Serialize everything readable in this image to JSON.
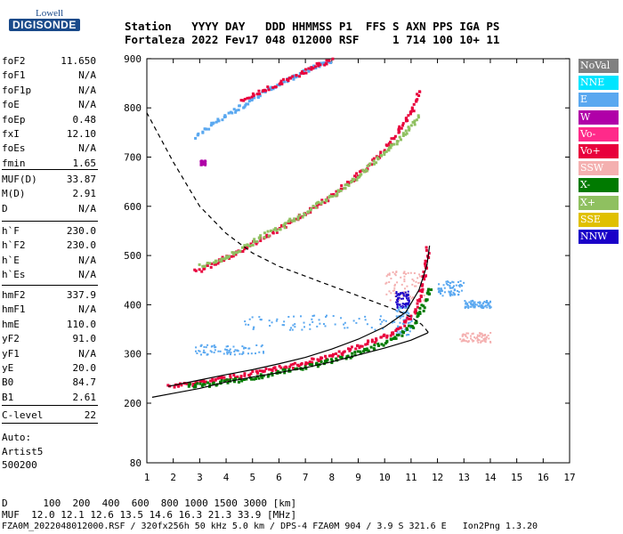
{
  "logo": {
    "line1": "Lowell",
    "line2": "DIGISONDE"
  },
  "header": {
    "row1": "Station   YYYY DAY   DDD HHMMSS P1  FFS S AXN PPS IGA PS",
    "row2": "Fortaleza 2022 Fev17 048 012000 RSF     1 714 100 10+ 11"
  },
  "params_group1": [
    {
      "name": "foF2",
      "value": "11.650"
    },
    {
      "name": "foF1",
      "value": "N/A"
    },
    {
      "name": "foF1p",
      "value": "N/A"
    },
    {
      "name": "foE",
      "value": "N/A"
    },
    {
      "name": "foEp",
      "value": "0.48"
    },
    {
      "name": "fxI",
      "value": "12.10"
    },
    {
      "name": "foEs",
      "value": "N/A"
    },
    {
      "name": "fmin",
      "value": "1.65"
    }
  ],
  "params_group2": [
    {
      "name": "MUF(D)",
      "value": "33.87"
    },
    {
      "name": "M(D)",
      "value": "2.91"
    },
    {
      "name": "D",
      "value": "N/A"
    }
  ],
  "params_group3": [
    {
      "name": "h`F",
      "value": "230.0"
    },
    {
      "name": "h`F2",
      "value": "230.0"
    },
    {
      "name": "h`E",
      "value": "N/A"
    },
    {
      "name": "h`Es",
      "value": "N/A"
    }
  ],
  "params_group4": [
    {
      "name": "hmF2",
      "value": "337.9"
    },
    {
      "name": "hmF1",
      "value": "N/A"
    },
    {
      "name": "hmE",
      "value": "110.0"
    },
    {
      "name": "yF2",
      "value": "91.0"
    },
    {
      "name": "yF1",
      "value": "N/A"
    },
    {
      "name": "yE",
      "value": "20.0"
    },
    {
      "name": "B0",
      "value": "84.7"
    },
    {
      "name": "B1",
      "value": "2.61"
    }
  ],
  "params_group5": [
    {
      "name": "C-level",
      "value": "22"
    }
  ],
  "autoscale": {
    "line1": "Auto:",
    "line2": "Artist5",
    "line3": "500200"
  },
  "bottom": {
    "d_row": "D      100  200  400  600  800 1000 1500 3000 [km]",
    "muf_row": "MUF  12.0 12.1 12.6 13.5 14.6 16.3 21.3 33.9 [MHz]",
    "footer": "FZA0M_2022048012000.RSF / 320fx256h 50 kHz 5.0 km / DPS-4 FZA0M 904 / 3.9 S 321.6 E   Ion2Png 1.3.20"
  },
  "legend": [
    {
      "label": "NoVal",
      "color": "#808080"
    },
    {
      "label": "NNE",
      "color": "#00e5ff"
    },
    {
      "label": "E",
      "color": "#5aa8f0"
    },
    {
      "label": "W",
      "color": "#b000a8"
    },
    {
      "label": "Vo-",
      "color": "#ff2a8a"
    },
    {
      "label": "Vo+",
      "color": "#e8003c"
    },
    {
      "label": "SSW",
      "color": "#f4b0b0"
    },
    {
      "label": "X-",
      "color": "#007a00"
    },
    {
      "label": "X+",
      "color": "#8fc060"
    },
    {
      "label": "SSE",
      "color": "#e0c000"
    },
    {
      "label": "NNW",
      "color": "#1a00c8"
    }
  ],
  "chart_data": {
    "type": "scatter",
    "xlim": [
      1,
      17
    ],
    "ylim": [
      80,
      900
    ],
    "xticks": [
      1,
      2,
      3,
      4,
      5,
      6,
      7,
      8,
      9,
      10,
      11,
      12,
      13,
      14,
      15,
      16,
      17
    ],
    "yticks": [
      80,
      200,
      300,
      400,
      500,
      600,
      700,
      800,
      900
    ],
    "series": [
      {
        "name": "Vo+",
        "color": "#e8003c",
        "type": "trace",
        "x": [
          1.8,
          2.5,
          3.5,
          4.5,
          5.5,
          6.5,
          7.5,
          8.5,
          9.5,
          10.2,
          10.6,
          11.0,
          11.2,
          11.4,
          11.6
        ],
        "y": [
          236,
          241,
          249,
          258,
          268,
          279,
          292,
          308,
          328,
          345,
          360,
          380,
          400,
          440,
          520
        ]
      },
      {
        "name": "X-",
        "color": "#007a00",
        "type": "trace",
        "x": [
          2.5,
          3.5,
          4.5,
          5.5,
          6.5,
          7.5,
          8.5,
          9.5,
          10.5,
          11.0,
          11.3,
          11.5,
          11.7
        ],
        "y": [
          236,
          242,
          250,
          259,
          270,
          282,
          296,
          315,
          340,
          360,
          385,
          410,
          440
        ]
      },
      {
        "name": "Vo+",
        "color": "#e8003c",
        "type": "trace",
        "x": [
          2.8,
          3.8,
          4.8,
          5.8,
          6.8,
          7.8,
          8.8,
          9.8,
          10.5,
          11.0,
          11.3
        ],
        "y": [
          470,
          493,
          522,
          552,
          583,
          618,
          658,
          708,
          755,
          800,
          840
        ]
      },
      {
        "name": "X+",
        "color": "#8fc060",
        "type": "trace",
        "x": [
          3.0,
          4.0,
          5.0,
          6.0,
          7.0,
          8.0,
          9.0,
          10.0,
          10.8,
          11.3
        ],
        "y": [
          480,
          500,
          530,
          560,
          590,
          625,
          665,
          712,
          755,
          790
        ]
      },
      {
        "name": "E",
        "color": "#5aa8f0",
        "type": "trace",
        "x": [
          2.8,
          3.5,
          4.2,
          5.0,
          5.8,
          6.5,
          7.2,
          7.7,
          8.0
        ],
        "y": [
          745,
          772,
          796,
          822,
          846,
          866,
          882,
          894,
          900
        ]
      },
      {
        "name": "Vo+",
        "color": "#e8003c",
        "type": "trace",
        "x": [
          4.5,
          5.5,
          6.5,
          7.5,
          8.0
        ],
        "y": [
          815,
          840,
          865,
          890,
          900
        ]
      },
      {
        "name": "profile",
        "color": "#000000",
        "type": "line",
        "x": [
          1.2,
          2,
          3,
          4,
          5,
          6,
          7,
          8,
          9,
          10,
          10.5,
          11,
          11.3,
          11.6,
          11.65
        ],
        "y": [
          212,
          220,
          230,
          243,
          253,
          262,
          272,
          284,
          298,
          312,
          320,
          328,
          335,
          342,
          344
        ]
      },
      {
        "name": "fit",
        "color": "#000000",
        "type": "line",
        "x": [
          1.8,
          3,
          4,
          5,
          6,
          7,
          8,
          9,
          10,
          10.8,
          11.3,
          11.6,
          11.7
        ],
        "y": [
          234,
          247,
          258,
          268,
          280,
          293,
          310,
          330,
          355,
          385,
          430,
          480,
          520
        ]
      },
      {
        "name": "profile-top",
        "color": "#000000",
        "type": "dashed",
        "x": [
          11.65,
          11.4,
          11.0,
          10.5,
          10.0,
          9.0,
          8.0,
          7.0,
          6.0,
          5.0,
          4.0,
          3.0,
          2.0,
          1.5,
          1.0
        ],
        "y": [
          344,
          360,
          375,
          388,
          398,
          418,
          438,
          458,
          478,
          505,
          545,
          600,
          690,
          740,
          790
        ]
      }
    ],
    "scatter_clusters": [
      {
        "name": "E",
        "color": "#5aa8f0",
        "x": [
          2.8,
          5.5
        ],
        "y": [
          300,
          320
        ]
      },
      {
        "name": "E",
        "color": "#5aa8f0",
        "x": [
          4.5,
          10.5
        ],
        "y": [
          350,
          380
        ]
      },
      {
        "name": "E",
        "color": "#5aa8f0",
        "x": [
          12.0,
          13.0
        ],
        "y": [
          420,
          450
        ]
      },
      {
        "name": "E",
        "color": "#5aa8f0",
        "x": [
          13.0,
          14.0
        ],
        "y": [
          395,
          410
        ]
      },
      {
        "name": "SSW",
        "color": "#f4b0b0",
        "x": [
          12.8,
          14.0
        ],
        "y": [
          325,
          345
        ]
      },
      {
        "name": "SSW",
        "color": "#f4b0b0",
        "x": [
          10.0,
          11.5
        ],
        "y": [
          410,
          470
        ]
      },
      {
        "name": "NNW",
        "color": "#1a00c8",
        "x": [
          10.4,
          10.9
        ],
        "y": [
          395,
          430
        ]
      },
      {
        "name": "E",
        "color": "#5aa8f0",
        "x": [
          10.4,
          11.0
        ],
        "y": [
          340,
          400
        ]
      },
      {
        "name": "W",
        "color": "#b000a8",
        "x": [
          3.0,
          3.2
        ],
        "y": [
          685,
          695
        ]
      }
    ]
  }
}
